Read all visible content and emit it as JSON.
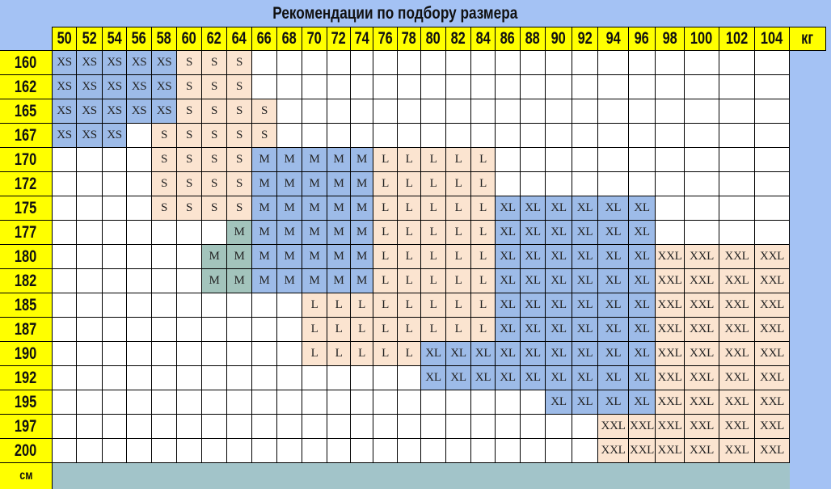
{
  "title": "Рекомендации по подбору размера",
  "weight_unit": "кг",
  "height_unit": "см",
  "weights": [
    "50",
    "52",
    "54",
    "56",
    "58",
    "60",
    "62",
    "64",
    "66",
    "68",
    "70",
    "72",
    "74",
    "76",
    "78",
    "80",
    "82",
    "84",
    "86",
    "88",
    "90",
    "92",
    "94",
    "96",
    "98",
    "100",
    "102",
    "104"
  ],
  "colors": {
    "background": "#a4c2f4",
    "header": "#ffff00",
    "XS": "#9dbbe8",
    "S": "#fbe4d0",
    "M": "#9dbbe8",
    "L": "#fbe4d0",
    "XL": "#9dbbe8",
    "XXL": "#fbe4d0",
    "M_alt": "#a3c4bc",
    "footer": "#a2c4c9"
  },
  "alt_color_cells": [
    [
      "177",
      "64"
    ],
    [
      "180",
      "62"
    ],
    [
      "180",
      "64"
    ],
    [
      "182",
      "62"
    ],
    [
      "182",
      "64"
    ]
  ],
  "rows": [
    {
      "height": "160",
      "cells": [
        "XS",
        "XS",
        "XS",
        "XS",
        "XS",
        "S",
        "S",
        "S",
        "",
        "",
        "",
        "",
        "",
        "",
        "",
        "",
        "",
        "",
        "",
        "",
        "",
        "",
        "",
        "",
        "",
        "",
        "",
        ""
      ]
    },
    {
      "height": "162",
      "cells": [
        "XS",
        "XS",
        "XS",
        "XS",
        "XS",
        "S",
        "S",
        "S",
        "",
        "",
        "",
        "",
        "",
        "",
        "",
        "",
        "",
        "",
        "",
        "",
        "",
        "",
        "",
        "",
        "",
        "",
        "",
        ""
      ]
    },
    {
      "height": "165",
      "cells": [
        "XS",
        "XS",
        "XS",
        "XS",
        "XS",
        "S",
        "S",
        "S",
        "S",
        "",
        "",
        "",
        "",
        "",
        "",
        "",
        "",
        "",
        "",
        "",
        "",
        "",
        "",
        "",
        "",
        "",
        "",
        ""
      ]
    },
    {
      "height": "167",
      "cells": [
        "XS",
        "XS",
        "XS",
        "",
        "S",
        "S",
        "S",
        "S",
        "S",
        "",
        "",
        "",
        "",
        "",
        "",
        "",
        "",
        "",
        "",
        "",
        "",
        "",
        "",
        "",
        "",
        "",
        "",
        ""
      ]
    },
    {
      "height": "170",
      "cells": [
        "",
        "",
        "",
        "",
        "S",
        "S",
        "S",
        "S",
        "M",
        "M",
        "M",
        "M",
        "M",
        "L",
        "L",
        "L",
        "L",
        "L",
        "",
        "",
        "",
        "",
        "",
        "",
        "",
        "",
        "",
        ""
      ]
    },
    {
      "height": "172",
      "cells": [
        "",
        "",
        "",
        "",
        "S",
        "S",
        "S",
        "S",
        "M",
        "M",
        "M",
        "M",
        "M",
        "L",
        "L",
        "L",
        "L",
        "L",
        "",
        "",
        "",
        "",
        "",
        "",
        "",
        "",
        "",
        ""
      ]
    },
    {
      "height": "175",
      "cells": [
        "",
        "",
        "",
        "",
        "S",
        "S",
        "S",
        "S",
        "M",
        "M",
        "M",
        "M",
        "M",
        "L",
        "L",
        "L",
        "L",
        "L",
        "XL",
        "XL",
        "XL",
        "XL",
        "XL",
        "XL",
        "",
        "",
        "",
        ""
      ]
    },
    {
      "height": "177",
      "cells": [
        "",
        "",
        "",
        "",
        "",
        "",
        "",
        "M",
        "M",
        "M",
        "M",
        "M",
        "M",
        "L",
        "L",
        "L",
        "L",
        "L",
        "XL",
        "XL",
        "XL",
        "XL",
        "XL",
        "XL",
        "",
        "",
        "",
        ""
      ]
    },
    {
      "height": "180",
      "cells": [
        "",
        "",
        "",
        "",
        "",
        "",
        "M",
        "M",
        "M",
        "M",
        "M",
        "M",
        "M",
        "L",
        "L",
        "L",
        "L",
        "L",
        "XL",
        "XL",
        "XL",
        "XL",
        "XL",
        "XL",
        "XXL",
        "XXL",
        "XXL",
        "XXL"
      ]
    },
    {
      "height": "182",
      "cells": [
        "",
        "",
        "",
        "",
        "",
        "",
        "M",
        "M",
        "M",
        "M",
        "M",
        "M",
        "M",
        "L",
        "L",
        "L",
        "L",
        "L",
        "XL",
        "XL",
        "XL",
        "XL",
        "XL",
        "XL",
        "XXL",
        "XXL",
        "XXL",
        "XXL"
      ]
    },
    {
      "height": "185",
      "cells": [
        "",
        "",
        "",
        "",
        "",
        "",
        "",
        "",
        "",
        "",
        "L",
        "L",
        "L",
        "L",
        "L",
        "L",
        "L",
        "L",
        "XL",
        "XL",
        "XL",
        "XL",
        "XL",
        "XL",
        "XXL",
        "XXL",
        "XXL",
        "XXL"
      ]
    },
    {
      "height": "187",
      "cells": [
        "",
        "",
        "",
        "",
        "",
        "",
        "",
        "",
        "",
        "",
        "L",
        "L",
        "L",
        "L",
        "L",
        "L",
        "L",
        "L",
        "XL",
        "XL",
        "XL",
        "XL",
        "XL",
        "XL",
        "XXL",
        "XXL",
        "XXL",
        "XXL"
      ]
    },
    {
      "height": "190",
      "cells": [
        "",
        "",
        "",
        "",
        "",
        "",
        "",
        "",
        "",
        "",
        "L",
        "L",
        "L",
        "L",
        "L",
        "XL",
        "XL",
        "XL",
        "XL",
        "XL",
        "XL",
        "XL",
        "XL",
        "XL",
        "XXL",
        "XXL",
        "XXL",
        "XXL"
      ]
    },
    {
      "height": "192",
      "cells": [
        "",
        "",
        "",
        "",
        "",
        "",
        "",
        "",
        "",
        "",
        "",
        "",
        "",
        "",
        "",
        "XL",
        "XL",
        "XL",
        "XL",
        "XL",
        "XL",
        "XL",
        "XL",
        "XL",
        "XXL",
        "XXL",
        "XXL",
        "XXL"
      ]
    },
    {
      "height": "195",
      "cells": [
        "",
        "",
        "",
        "",
        "",
        "",
        "",
        "",
        "",
        "",
        "",
        "",
        "",
        "",
        "",
        "",
        "",
        "",
        "",
        "",
        "XL",
        "XL",
        "XL",
        "XL",
        "XXL",
        "XXL",
        "XXL",
        "XXL"
      ]
    },
    {
      "height": "197",
      "cells": [
        "",
        "",
        "",
        "",
        "",
        "",
        "",
        "",
        "",
        "",
        "",
        "",
        "",
        "",
        "",
        "",
        "",
        "",
        "",
        "",
        "",
        "",
        "XXL",
        "XXL",
        "XXL",
        "XXL",
        "XXL",
        "XXL"
      ]
    },
    {
      "height": "200",
      "cells": [
        "",
        "",
        "",
        "",
        "",
        "",
        "",
        "",
        "",
        "",
        "",
        "",
        "",
        "",
        "",
        "",
        "",
        "",
        "",
        "",
        "",
        "",
        "XXL",
        "XXL",
        "XXL",
        "XXL",
        "XXL",
        "XXL"
      ]
    }
  ]
}
